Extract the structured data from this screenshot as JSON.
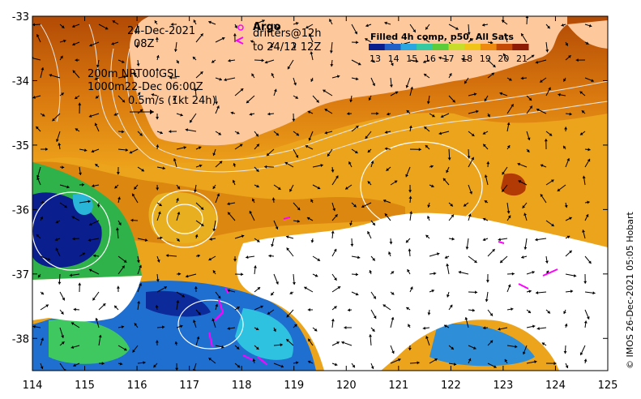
{
  "map": {
    "x_ticks": [
      "114",
      "115",
      "116",
      "117",
      "118",
      "119",
      "120",
      "121",
      "122",
      "123",
      "124",
      "125"
    ],
    "y_ticks": [
      "-33",
      "-34",
      "-35",
      "-36",
      "-37",
      "-38"
    ],
    "x_range": [
      114,
      125
    ],
    "y_range": [
      -38.5,
      -33
    ]
  },
  "annotations": {
    "date": "24-Dec-2021",
    "time": "08Z",
    "depth_contours": "200m  NRT00 GSL",
    "depth_1000": "1000m22-Dec 06:00Z",
    "scale_vector": "0.5m/s (1kt 24h)",
    "argo_label": "Argo",
    "drifters_label": "drifters@12h",
    "drifters_window": "to 24/12 12Z"
  },
  "legend": {
    "title": "Filled 4h comp, p50, All Sats",
    "ticks": [
      "13",
      "14",
      "15",
      "16",
      "17",
      "18",
      "19",
      "20",
      "21"
    ],
    "colors": [
      "#0b1e8e",
      "#1f5fc8",
      "#2aa6e0",
      "#34c9a0",
      "#5dcc3b",
      "#c8dd2a",
      "#f0c419",
      "#ee8a10",
      "#c44a06",
      "#8c1a04"
    ]
  },
  "credit": "© IMOS 26-Dec-2021 05:05 Hobart",
  "colors": {
    "land": "#fdc89c",
    "sst_warm": "#c85a0a",
    "sst_mid": "#f0a81a",
    "sst_cool": "#0a1f8a",
    "no_data": "#ffffff",
    "argo": "#ff00ff"
  }
}
